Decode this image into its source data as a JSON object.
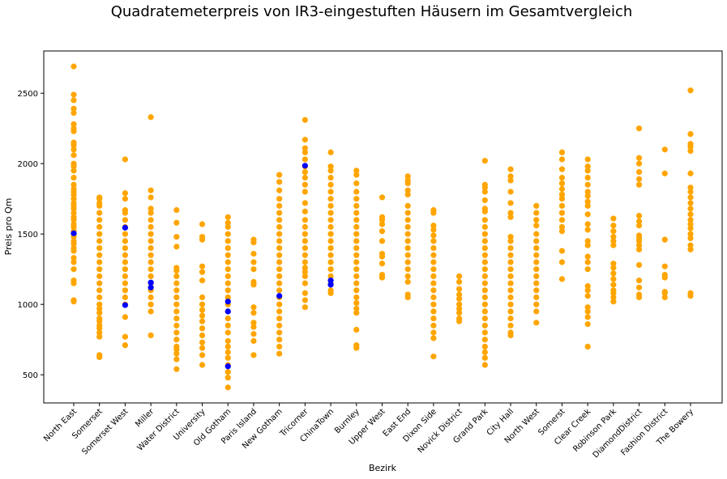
{
  "chart_data": {
    "type": "scatter",
    "title": "Quadratemeterpreis von IR3-eingestuften Häusern im Gesamtvergleich",
    "xlabel": "Bezirk",
    "ylabel": "Preis pro Qm",
    "ylim": [
      300,
      2800
    ],
    "yticks": [
      500,
      1000,
      1500,
      2000,
      2500
    ],
    "categories": [
      "North East",
      "Somerset",
      "Somerset West",
      "Miller",
      "Water District",
      "University",
      "Old Gotham",
      "Paris Island",
      "New Gotham",
      "Tricorner",
      "ChinaTown",
      "Burnley",
      "Upper West",
      "East End",
      "Dixon Side",
      "Novick District",
      "Grand Park",
      "City Hall",
      "North West",
      "Somerst",
      "Clear Creek",
      "Robinson Park",
      "DiamondDistrict",
      "Fashion District",
      "The Bowery"
    ],
    "colors": {
      "all": "#FFA500",
      "ir3": "#0000FF"
    },
    "series": [
      {
        "values": [
          [
            1020,
            1030,
            1150,
            1170,
            1250,
            1300,
            1330,
            1380,
            1400,
            1430,
            1450,
            1480,
            1500,
            1520,
            1550,
            1570,
            1600,
            1620,
            1650,
            1680,
            1700,
            1720,
            1750,
            1780,
            1800,
            1820,
            1850,
            1900,
            1950,
            1980,
            2000,
            2060,
            2100,
            2130,
            2150,
            2230,
            2250,
            2280,
            2360,
            2390,
            2450,
            2490,
            2690
          ],
          [
            625,
            640,
            770,
            800,
            830,
            850,
            880,
            900,
            940,
            970,
            1000,
            1050,
            1100,
            1150,
            1200,
            1250,
            1300,
            1350,
            1400,
            1450,
            1500,
            1550,
            1600,
            1650,
            1700,
            1720,
            1750,
            1760
          ],
          [
            710,
            770,
            910,
            1000,
            1050,
            1100,
            1150,
            1200,
            1250,
            1300,
            1350,
            1400,
            1450,
            1500,
            1550,
            1600,
            1650,
            1670,
            1750,
            1790,
            2030
          ],
          [
            780,
            950,
            1000,
            1050,
            1100,
            1150,
            1200,
            1250,
            1300,
            1350,
            1400,
            1450,
            1500,
            1550,
            1600,
            1650,
            1680,
            1760,
            1810,
            2330
          ],
          [
            540,
            610,
            650,
            680,
            700,
            750,
            800,
            850,
            900,
            950,
            1000,
            1050,
            1100,
            1150,
            1200,
            1240,
            1260,
            1410,
            1480,
            1580,
            1670
          ],
          [
            570,
            640,
            690,
            730,
            780,
            830,
            880,
            920,
            960,
            1000,
            1050,
            1170,
            1230,
            1270,
            1460,
            1480,
            1570
          ],
          [
            410,
            480,
            520,
            570,
            620,
            660,
            700,
            740,
            800,
            850,
            900,
            950,
            1000,
            1050,
            1100,
            1150,
            1200,
            1250,
            1300,
            1350,
            1400,
            1450,
            1500,
            1550,
            1580,
            1620
          ],
          [
            640,
            740,
            790,
            840,
            870,
            940,
            980,
            1140,
            1160,
            1250,
            1300,
            1360,
            1440,
            1460
          ],
          [
            650,
            700,
            750,
            800,
            850,
            900,
            950,
            1000,
            1050,
            1100,
            1150,
            1200,
            1250,
            1300,
            1350,
            1400,
            1450,
            1500,
            1550,
            1600,
            1650,
            1700,
            1750,
            1810,
            1870,
            1920
          ],
          [
            980,
            1030,
            1080,
            1150,
            1200,
            1230,
            1260,
            1300,
            1350,
            1400,
            1450,
            1500,
            1550,
            1600,
            1660,
            1720,
            1800,
            1850,
            1900,
            1940,
            1980,
            2030,
            2080,
            2110,
            2170,
            2310
          ],
          [
            1080,
            1100,
            1150,
            1200,
            1250,
            1300,
            1350,
            1400,
            1450,
            1500,
            1550,
            1600,
            1650,
            1700,
            1750,
            1800,
            1850,
            1900,
            1950,
            1980,
            2080
          ],
          [
            690,
            710,
            820,
            940,
            970,
            1010,
            1050,
            1100,
            1150,
            1200,
            1250,
            1300,
            1350,
            1400,
            1450,
            1500,
            1550,
            1600,
            1650,
            1700,
            1750,
            1800,
            1860,
            1920,
            1950
          ],
          [
            1190,
            1210,
            1290,
            1340,
            1360,
            1450,
            1520,
            1570,
            1600,
            1620,
            1760
          ],
          [
            1050,
            1070,
            1160,
            1200,
            1250,
            1300,
            1350,
            1400,
            1450,
            1500,
            1550,
            1600,
            1650,
            1700,
            1780,
            1810,
            1860,
            1880,
            1910
          ],
          [
            630,
            760,
            800,
            850,
            900,
            950,
            1000,
            1050,
            1100,
            1150,
            1200,
            1250,
            1300,
            1350,
            1400,
            1450,
            1490,
            1530,
            1560,
            1650,
            1670
          ],
          [
            880,
            900,
            940,
            970,
            1000,
            1040,
            1070,
            1110,
            1160,
            1200
          ],
          [
            570,
            620,
            660,
            700,
            750,
            800,
            850,
            900,
            950,
            1000,
            1050,
            1100,
            1150,
            1200,
            1250,
            1300,
            1350,
            1400,
            1450,
            1500,
            1550,
            1600,
            1660,
            1680,
            1740,
            1800,
            1830,
            1850,
            2020
          ],
          [
            780,
            800,
            850,
            900,
            950,
            1000,
            1050,
            1100,
            1150,
            1200,
            1250,
            1300,
            1350,
            1400,
            1450,
            1480,
            1620,
            1650,
            1720,
            1800,
            1880,
            1910,
            1960
          ],
          [
            870,
            950,
            1000,
            1050,
            1100,
            1150,
            1200,
            1250,
            1300,
            1350,
            1400,
            1450,
            1500,
            1560,
            1600,
            1650,
            1700
          ],
          [
            1180,
            1300,
            1380,
            1520,
            1550,
            1600,
            1650,
            1700,
            1750,
            1780,
            1820,
            1860,
            1900,
            1960,
            2030,
            2080
          ],
          [
            700,
            860,
            910,
            950,
            980,
            1060,
            1100,
            1130,
            1250,
            1300,
            1340,
            1420,
            1450,
            1530,
            1570,
            1640,
            1700,
            1730,
            1770,
            1800,
            1850,
            1900,
            1950,
            1980,
            2030
          ],
          [
            1020,
            1050,
            1080,
            1100,
            1140,
            1180,
            1220,
            1260,
            1290,
            1420,
            1450,
            1480,
            1520,
            1560,
            1610
          ],
          [
            1050,
            1070,
            1120,
            1170,
            1280,
            1390,
            1420,
            1450,
            1470,
            1490,
            1560,
            1590,
            1630,
            1850,
            1890,
            1940,
            2000,
            2040,
            2250
          ],
          [
            1050,
            1080,
            1090,
            1190,
            1210,
            1270,
            1460,
            1930,
            2100
          ],
          [
            1060,
            1080,
            1390,
            1420,
            1470,
            1500,
            1540,
            1570,
            1600,
            1640,
            1680,
            1720,
            1760,
            1800,
            1830,
            1930,
            2090,
            2120,
            2140,
            2210,
            2520
          ]
        ]
      },
      {
        "values": [
          [
            1505
          ],
          [],
          [
            995,
            1545
          ],
          [
            1120,
            1155
          ],
          [],
          [],
          [
            560,
            950,
            1020
          ],
          [],
          [
            1060
          ],
          [
            1985
          ],
          [
            1140,
            1170
          ],
          [],
          [],
          [],
          [],
          [],
          [],
          [],
          [],
          [],
          [],
          [],
          [],
          [],
          []
        ]
      }
    ],
    "grid": false,
    "legend": "none"
  }
}
